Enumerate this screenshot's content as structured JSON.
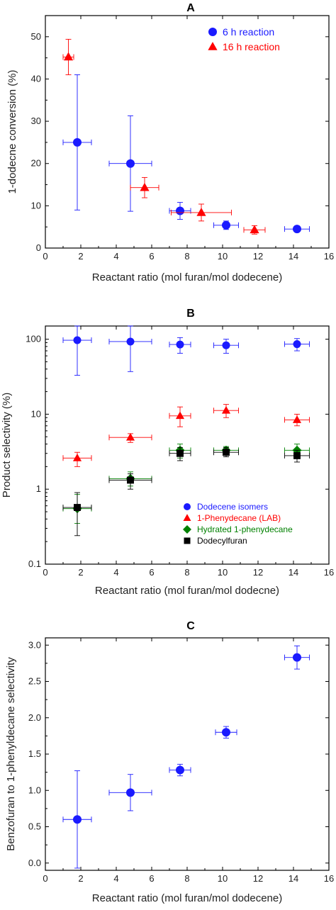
{
  "chart_data": [
    {
      "type": "scatter",
      "panel_label": "A",
      "xlabel": "Reactant ratio (mol furan/mol dodecene)",
      "ylabel": "1-dodecne conversion (%)",
      "xlim": [
        0,
        16
      ],
      "ylim": [
        0,
        55
      ],
      "xticks": [
        "0",
        "2",
        "4",
        "6",
        "8",
        "10",
        "12",
        "14",
        "16"
      ],
      "yticks": [
        "0",
        "10",
        "20",
        "30",
        "40",
        "50"
      ],
      "legend_position": "top-right",
      "series": [
        {
          "name": "6 h reaction",
          "color": "#1a1aff",
          "marker": "circle",
          "points": [
            {
              "x": 1.8,
              "y": 25.0,
              "xerr": 0.8,
              "yerr": 16.0
            },
            {
              "x": 4.8,
              "y": 20.0,
              "xerr": 1.2,
              "yerr": 11.3
            },
            {
              "x": 7.6,
              "y": 8.8,
              "xerr": 0.6,
              "yerr": 2.0
            },
            {
              "x": 10.2,
              "y": 5.4,
              "xerr": 0.7,
              "yerr": 1.0
            },
            {
              "x": 14.2,
              "y": 4.5,
              "xerr": 0.7,
              "yerr": 0.5
            }
          ]
        },
        {
          "name": "16 h reaction",
          "color": "#ff0000",
          "marker": "triangle",
          "points": [
            {
              "x": 1.3,
              "y": 45.2,
              "xerr": 0.3,
              "yerr": 4.2
            },
            {
              "x": 5.6,
              "y": 14.3,
              "xerr": 0.8,
              "yerr": 2.4
            },
            {
              "x": 8.8,
              "y": 8.4,
              "xerr": 1.7,
              "yerr": 2.0
            },
            {
              "x": 11.8,
              "y": 4.3,
              "xerr": 0.6,
              "yerr": 1.0
            }
          ]
        }
      ]
    },
    {
      "type": "scatter",
      "panel_label": "B",
      "xlabel": "Reactant ratio (mol furan/mol dodecne)",
      "ylabel": "Product selectivity (%)",
      "yscale": "log",
      "xlim": [
        0,
        16
      ],
      "ylim": [
        0.1,
        150
      ],
      "xticks": [
        "0",
        "2",
        "4",
        "6",
        "8",
        "10",
        "12",
        "14",
        "16"
      ],
      "yticks": [
        "0.1",
        "1",
        "10",
        "100"
      ],
      "legend_position": "bottom-right",
      "series": [
        {
          "name": "Dodecene isomers",
          "color": "#1a1aff",
          "marker": "circle",
          "points": [
            {
              "x": 1.8,
              "y": 97,
              "xerr": 0.8,
              "ylo": 33,
              "yhi": 150
            },
            {
              "x": 4.8,
              "y": 93,
              "xerr": 1.2,
              "ylo": 37,
              "yhi": 150
            },
            {
              "x": 7.6,
              "y": 85,
              "xerr": 0.6,
              "ylo": 65,
              "yhi": 105
            },
            {
              "x": 10.2,
              "y": 83,
              "xerr": 0.7,
              "ylo": 65,
              "yhi": 100
            },
            {
              "x": 14.2,
              "y": 86,
              "xerr": 0.7,
              "ylo": 70,
              "yhi": 102
            }
          ]
        },
        {
          "name": "1-Phenydecane (LAB)",
          "color": "#ff0000",
          "marker": "triangle",
          "points": [
            {
              "x": 1.8,
              "y": 2.6,
              "xerr": 0.8,
              "ylo": 2.0,
              "yhi": 3.1
            },
            {
              "x": 4.8,
              "y": 4.9,
              "xerr": 1.2,
              "ylo": 4.2,
              "yhi": 5.5
            },
            {
              "x": 7.6,
              "y": 9.5,
              "xerr": 0.6,
              "ylo": 6.8,
              "yhi": 12.5
            },
            {
              "x": 10.2,
              "y": 11.2,
              "xerr": 0.7,
              "ylo": 9.0,
              "yhi": 13.5
            },
            {
              "x": 14.2,
              "y": 8.4,
              "xerr": 0.7,
              "ylo": 7.0,
              "yhi": 10.0
            }
          ]
        },
        {
          "name": "Hydrated 1-phenydecane",
          "color": "#008000",
          "marker": "diamond",
          "points": [
            {
              "x": 1.8,
              "y": 0.55,
              "xerr": 0.8,
              "ylo": 0.35,
              "yhi": 0.85
            },
            {
              "x": 4.8,
              "y": 1.38,
              "xerr": 1.2,
              "ylo": 1.1,
              "yhi": 1.7
            },
            {
              "x": 7.6,
              "y": 3.3,
              "xerr": 0.6,
              "ylo": 2.6,
              "yhi": 4.0
            },
            {
              "x": 10.2,
              "y": 3.3,
              "xerr": 0.7,
              "ylo": 2.9,
              "yhi": 3.7
            },
            {
              "x": 14.2,
              "y": 3.3,
              "xerr": 0.7,
              "ylo": 2.6,
              "yhi": 4.0
            }
          ]
        },
        {
          "name": "Dodecylfuran",
          "color": "#000000",
          "marker": "square",
          "points": [
            {
              "x": 1.8,
              "y": 0.57,
              "xerr": 0.8,
              "ylo": 0.24,
              "yhi": 0.9
            },
            {
              "x": 4.8,
              "y": 1.32,
              "xerr": 1.2,
              "ylo": 1.0,
              "yhi": 1.6
            },
            {
              "x": 7.6,
              "y": 3.0,
              "xerr": 0.6,
              "ylo": 2.4,
              "yhi": 3.6
            },
            {
              "x": 10.2,
              "y": 3.1,
              "xerr": 0.7,
              "ylo": 2.7,
              "yhi": 3.6
            },
            {
              "x": 14.2,
              "y": 2.8,
              "xerr": 0.7,
              "ylo": 2.3,
              "yhi": 3.3
            }
          ]
        }
      ]
    },
    {
      "type": "scatter",
      "panel_label": "C",
      "xlabel": "Reactant ratio (mol furan/mol dodecene)",
      "ylabel": "Benzofuran to 1-phenyldecane selectivity",
      "xlim": [
        0,
        16
      ],
      "ylim": [
        -0.1,
        3.1
      ],
      "xticks": [
        "0",
        "2",
        "4",
        "6",
        "8",
        "10",
        "12",
        "14",
        "16"
      ],
      "yticks": [
        "0.0",
        "0.5",
        "1.0",
        "1.5",
        "2.0",
        "2.5",
        "3.0"
      ],
      "series": [
        {
          "color": "#1a1aff",
          "marker": "circle",
          "points": [
            {
              "x": 1.8,
              "y": 0.6,
              "xerr": 0.8,
              "yerr": 0.67
            },
            {
              "x": 4.8,
              "y": 0.97,
              "xerr": 1.2,
              "yerr": 0.25
            },
            {
              "x": 7.6,
              "y": 1.28,
              "xerr": 0.6,
              "yerr": 0.08
            },
            {
              "x": 10.2,
              "y": 1.8,
              "xerr": 0.6,
              "yerr": 0.08
            },
            {
              "x": 14.2,
              "y": 2.83,
              "xerr": 0.7,
              "yerr": 0.16
            }
          ]
        }
      ]
    }
  ]
}
